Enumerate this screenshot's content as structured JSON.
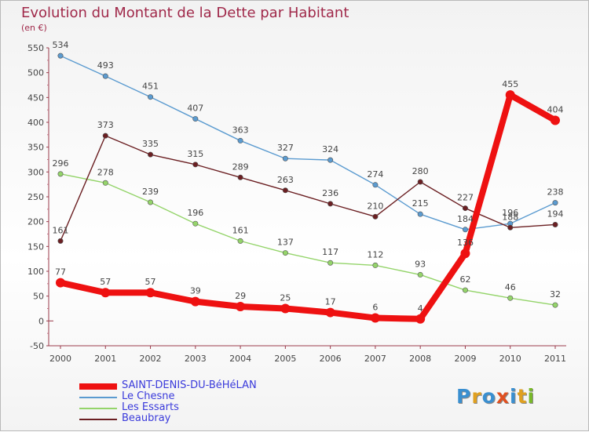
{
  "title": "Evolution du Montant de la Dette par Habitant",
  "subtitle": "(en €)",
  "brand": {
    "text": "Proxiti",
    "colors": [
      "#3a8fd0",
      "#e0a020",
      "#3a8fd0",
      "#e05020",
      "#3a8fd0",
      "#e0a020",
      "#78b828"
    ]
  },
  "chart_data": {
    "type": "line",
    "categories": [
      "2000",
      "2001",
      "2002",
      "2003",
      "2004",
      "2005",
      "2006",
      "2007",
      "2008",
      "2009",
      "2010",
      "2011"
    ],
    "ylim": [
      -50,
      550
    ],
    "yticks": [
      -50,
      0,
      50,
      100,
      150,
      200,
      250,
      300,
      350,
      400,
      450,
      500,
      550
    ],
    "grid": false,
    "legend_position": "bottom-left",
    "series": [
      {
        "name": "SAINT-DENIS-DU-BéHéLAN",
        "color": "#ee1111",
        "values": [
          77,
          57,
          57,
          39,
          29,
          25,
          17,
          6,
          4,
          136,
          455,
          404
        ]
      },
      {
        "name": "Le Chesne",
        "color": "#5b9bd0",
        "values": [
          534,
          493,
          451,
          407,
          363,
          327,
          324,
          274,
          215,
          184,
          196,
          238
        ]
      },
      {
        "name": "Les Essarts",
        "color": "#94d46a",
        "values": [
          296,
          278,
          239,
          196,
          161,
          137,
          117,
          112,
          93,
          62,
          46,
          32
        ]
      },
      {
        "name": "Beaubray",
        "color": "#6b1f22",
        "values": [
          161,
          373,
          335,
          315,
          289,
          263,
          236,
          210,
          280,
          227,
          188,
          194
        ]
      }
    ]
  }
}
